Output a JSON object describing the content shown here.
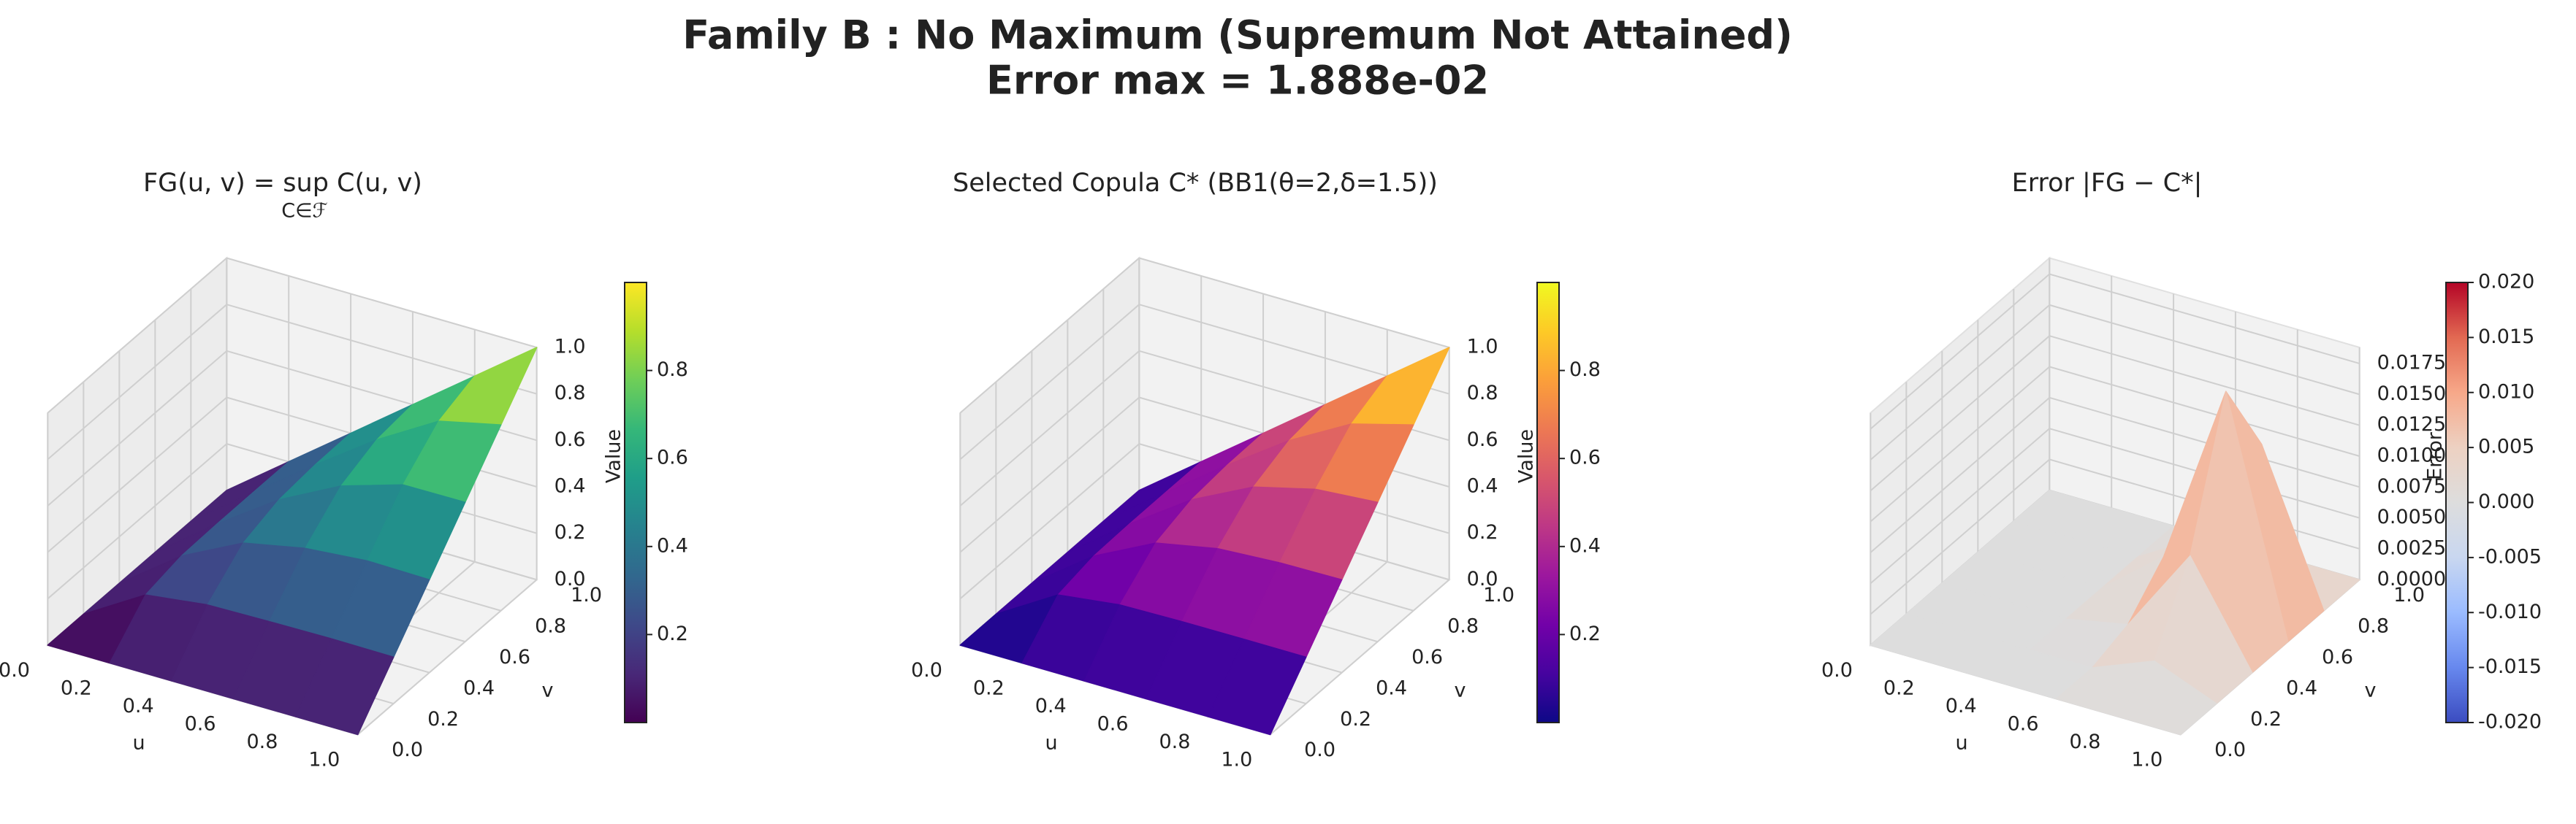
{
  "suptitle": [
    "Family B : No Maximum (Supremum Not Attained)",
    "Error max = 1.888e-02"
  ],
  "chart_data": [
    {
      "type": "surface3d",
      "title": "FG(u, v) = sup C(u, v)",
      "title_sub": "C∈ℱ",
      "x": [
        0,
        0.2,
        0.4,
        0.6,
        0.8,
        1
      ],
      "y": [
        0,
        0.2,
        0.4,
        0.6,
        0.8,
        1
      ],
      "z": [
        [
          0,
          0,
          0,
          0,
          0,
          0
        ],
        [
          0,
          0.16,
          0.194,
          0.199,
          0.2,
          0.2
        ],
        [
          0,
          0.194,
          0.327,
          0.38,
          0.396,
          0.4
        ],
        [
          0,
          0.199,
          0.381,
          0.516,
          0.582,
          0.6
        ],
        [
          0,
          0.202,
          0.404,
          0.598,
          0.739,
          0.8
        ],
        [
          0,
          0.2,
          0.4,
          0.6,
          0.8,
          1
        ]
      ],
      "xlabel": "u",
      "ylabel": "v",
      "xlim": [
        0,
        1
      ],
      "ylim": [
        0,
        1
      ],
      "zlim": [
        0,
        1
      ],
      "xticks": [
        {
          "value": 0,
          "label": "0.0"
        },
        0.2,
        0.4,
        0.6,
        0.8,
        {
          "value": 1,
          "label": "1.0"
        }
      ],
      "yticks": [
        {
          "value": 0,
          "label": "0.0"
        },
        0.2,
        0.4,
        0.6,
        0.8,
        {
          "value": 1,
          "label": "1.0"
        }
      ],
      "zticks": [
        {
          "value": 0,
          "label": "0.0"
        },
        0.2,
        0.4,
        0.6,
        0.8,
        {
          "value": 1,
          "label": "1.0"
        }
      ],
      "colormap": "viridis",
      "colorbar": {
        "label": "Value",
        "lim": [
          0,
          1
        ],
        "ticks": [
          0.2,
          0.4,
          0.6,
          0.8
        ]
      }
    },
    {
      "type": "surface3d",
      "title": "Selected Copula C* (BB1(θ=2,δ=1.5))",
      "x": [
        0,
        0.2,
        0.4,
        0.6,
        0.8,
        1
      ],
      "y": [
        0,
        0.2,
        0.4,
        0.6,
        0.8,
        1
      ],
      "z": [
        [
          0,
          0,
          0,
          0,
          0,
          0
        ],
        [
          0,
          0.16,
          0.194,
          0.199,
          0.2,
          0.2
        ],
        [
          0,
          0.194,
          0.327,
          0.38,
          0.396,
          0.4
        ],
        [
          0,
          0.199,
          0.38,
          0.512,
          0.579,
          0.6
        ],
        [
          0,
          0.2,
          0.396,
          0.579,
          0.727,
          0.8
        ],
        [
          0,
          0.2,
          0.4,
          0.6,
          0.8,
          1
        ]
      ],
      "xlabel": "u",
      "ylabel": "v",
      "xlim": [
        0,
        1
      ],
      "ylim": [
        0,
        1
      ],
      "zlim": [
        0,
        1
      ],
      "xticks": [
        {
          "value": 0,
          "label": "0.0"
        },
        0.2,
        0.4,
        0.6,
        0.8,
        {
          "value": 1,
          "label": "1.0"
        }
      ],
      "yticks": [
        {
          "value": 0,
          "label": "0.0"
        },
        0.2,
        0.4,
        0.6,
        0.8,
        {
          "value": 1,
          "label": "1.0"
        }
      ],
      "zticks": [
        {
          "value": 0,
          "label": "0.0"
        },
        0.2,
        0.4,
        0.6,
        0.8,
        {
          "value": 1,
          "label": "1.0"
        }
      ],
      "colormap": "plasma",
      "colorbar": {
        "label": "Value",
        "lim": [
          0,
          1
        ],
        "ticks": [
          0.2,
          0.4,
          0.6,
          0.8
        ]
      }
    },
    {
      "type": "surface3d",
      "title": "Error |FG − C*|",
      "x": [
        0,
        0.2,
        0.4,
        0.6,
        0.8,
        1
      ],
      "y": [
        0,
        0.2,
        0.4,
        0.6,
        0.8,
        1
      ],
      "z": [
        [
          0,
          0,
          0,
          0,
          0,
          0
        ],
        [
          0,
          0,
          0,
          0,
          0,
          0
        ],
        [
          0,
          0,
          0,
          0,
          0,
          0
        ],
        [
          0,
          0,
          0.001,
          0.004,
          0.003,
          0
        ],
        [
          0,
          0.002,
          0.008,
          0.0188,
          0.012,
          0
        ],
        [
          0,
          0,
          0,
          0,
          0,
          0
        ]
      ],
      "xlabel": "u",
      "ylabel": "v",
      "xlim": [
        0,
        1
      ],
      "ylim": [
        0,
        1
      ],
      "zlim": [
        0,
        0.0188
      ],
      "xticks": [
        {
          "value": 0,
          "label": "0.0"
        },
        0.2,
        0.4,
        0.6,
        0.8,
        {
          "value": 1,
          "label": "1.0"
        }
      ],
      "yticks": [
        {
          "value": 0,
          "label": "0.0"
        },
        0.2,
        0.4,
        0.6,
        0.8,
        {
          "value": 1,
          "label": "1.0"
        }
      ],
      "zticks": [
        {
          "value": 0,
          "label": "0.0000"
        },
        0.0025,
        {
          "value": 0.005,
          "label": "0.0050"
        },
        0.0075,
        {
          "value": 0.01,
          "label": "0.0100"
        },
        0.0125,
        {
          "value": 0.015,
          "label": "0.0150"
        },
        0.0175
      ],
      "colormap": "coolwarm",
      "colorbar": {
        "label": "Error",
        "lim": [
          -0.02,
          0.02
        ],
        "ticks": [
          {
            "value": -0.02,
            "label": "-0.020"
          },
          -0.015,
          {
            "value": -0.01,
            "label": "-0.010"
          },
          -0.005,
          {
            "value": 0,
            "label": "0.000"
          },
          0.005,
          {
            "value": 0.01,
            "label": "0.010"
          },
          0.015,
          {
            "value": 0.02,
            "label": "0.020"
          }
        ]
      }
    }
  ]
}
